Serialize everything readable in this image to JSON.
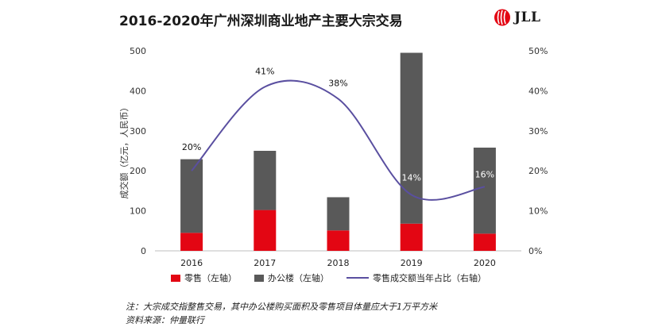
{
  "title": "2016-2020年广州深圳商业地产主要大宗交易",
  "logo": {
    "text": "JLL",
    "color": "#e30613"
  },
  "colors": {
    "retail": "#e30613",
    "office": "#595959",
    "line": "#5a4fa0"
  },
  "legend": {
    "retail": "零售（左轴）",
    "office": "办公楼（左轴）",
    "share": "零售成交额当年占比（右轴）"
  },
  "notes": {
    "note": "注：大宗成交指整售交易，其中办公楼购买面积及零售项目体量应大于1万平方米",
    "source": "资料来源：仲量联行"
  },
  "chart_data": {
    "type": "bar",
    "stacked": true,
    "categories": [
      "2016",
      "2017",
      "2018",
      "2019",
      "2020"
    ],
    "series": [
      {
        "name": "零售（左轴）",
        "axis": "left",
        "values": [
          45,
          102,
          51,
          68,
          43
        ]
      },
      {
        "name": "办公楼（左轴）",
        "axis": "left",
        "values": [
          184,
          148,
          83,
          427,
          215
        ]
      },
      {
        "name": "零售成交额当年占比（右轴）",
        "type": "line",
        "axis": "right",
        "values": [
          20,
          41,
          38,
          14,
          16
        ]
      }
    ],
    "data_labels": [
      "20%",
      "41%",
      "38%",
      "14%",
      "16%"
    ],
    "ylabel": "成交额（亿元，人民币）",
    "ylim": [
      0,
      500
    ],
    "yticks": [
      "0",
      "100",
      "200",
      "300",
      "400",
      "500"
    ],
    "y2lim": [
      0,
      50
    ],
    "y2ticks": [
      "0%",
      "10%",
      "20%",
      "30%",
      "40%",
      "50%"
    ],
    "legend_position": "bottom",
    "grid": false
  }
}
